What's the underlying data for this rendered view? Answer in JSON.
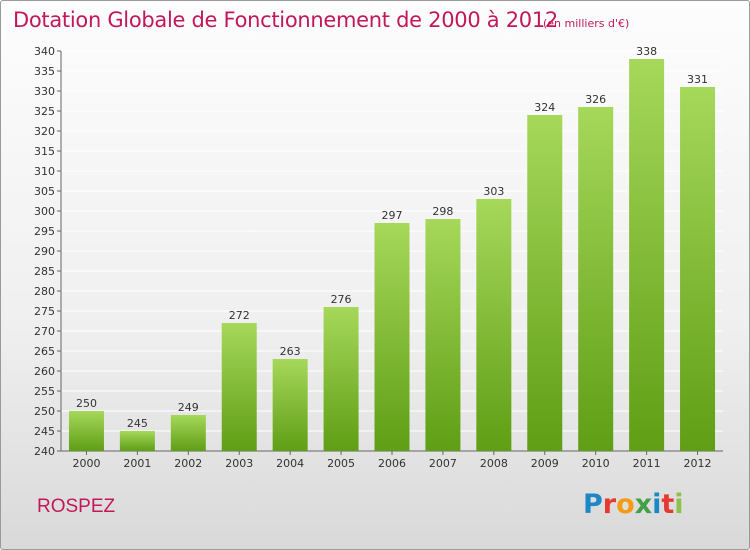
{
  "header": {
    "title": "Dotation Globale de Fonctionnement de 2000 à 2012",
    "subtitle": "(en milliers d'€)"
  },
  "footer": {
    "commune": "ROSPEZ",
    "brand": "Proxiti",
    "brand_colors": [
      "#1e88c7",
      "#e53935",
      "#f39c12",
      "#43a047",
      "#1e88c7",
      "#e53935",
      "#8bc34a"
    ]
  },
  "colors": {
    "bar_light": "#a6d85a",
    "bar_dark": "#5f9e15",
    "axis": "#666666",
    "grid": "#ffffff",
    "title": "#c2185b"
  },
  "chart_data": {
    "type": "bar",
    "categories": [
      "2000",
      "2001",
      "2002",
      "2003",
      "2004",
      "2005",
      "2006",
      "2007",
      "2008",
      "2009",
      "2010",
      "2011",
      "2012"
    ],
    "values": [
      250,
      245,
      249,
      272,
      263,
      276,
      297,
      298,
      303,
      324,
      326,
      338,
      331
    ],
    "title": "Dotation Globale de Fonctionnement de 2000 à 2012",
    "subtitle": "(en milliers d'€)",
    "xlabel": "",
    "ylabel": "",
    "ylim": [
      240,
      340
    ],
    "ytick_step": 5,
    "grid": true,
    "data_labels": true
  }
}
